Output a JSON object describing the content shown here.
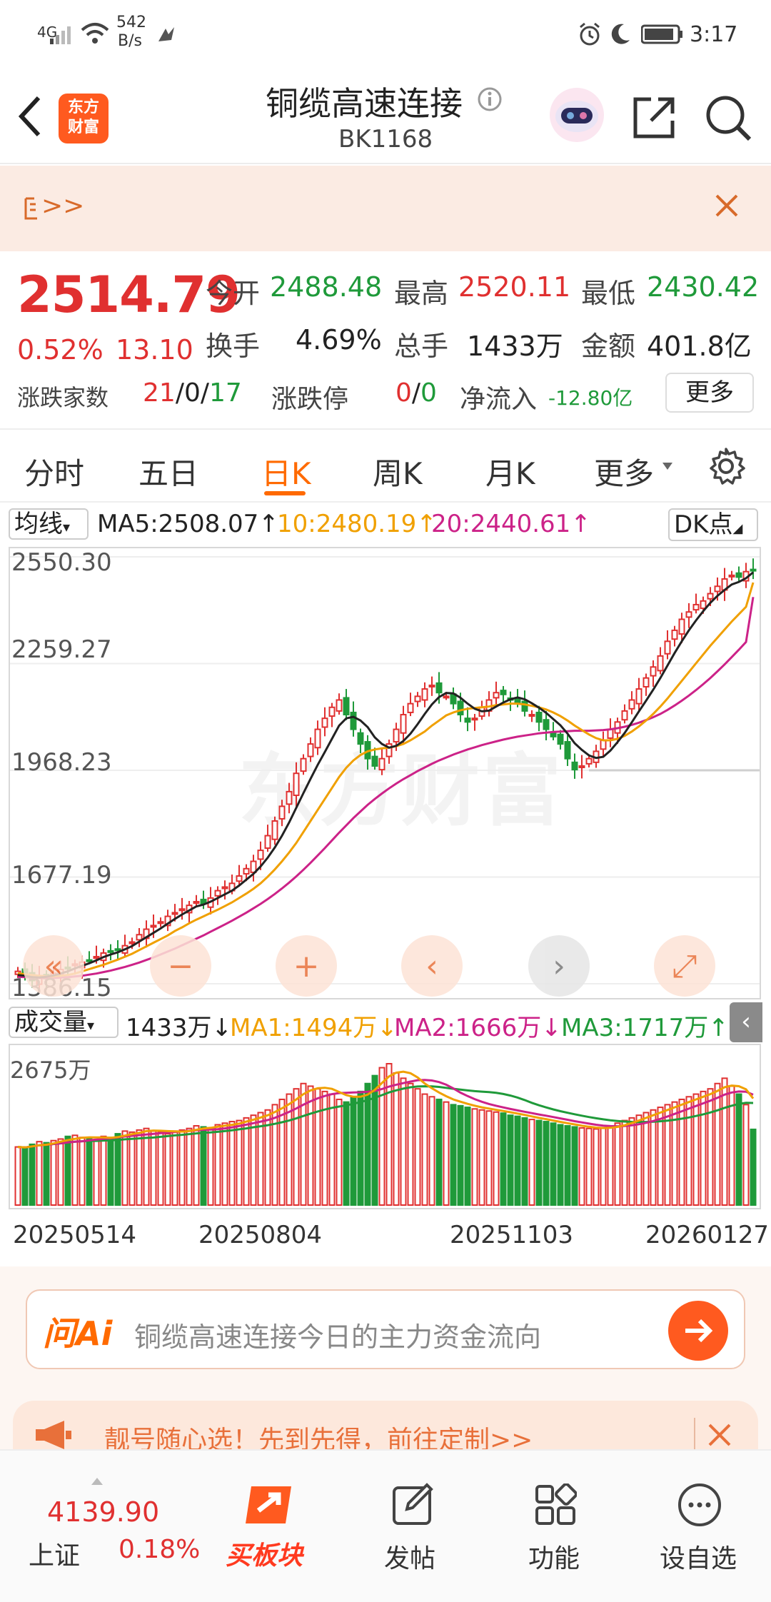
{
  "status_bar": {
    "network": "4G",
    "speed_value": "542",
    "speed_unit": "B/s",
    "time": "3:17"
  },
  "header": {
    "logo_line1": "东方",
    "logo_line2": "财富",
    "title": "铜缆高速连接",
    "code": "BK1168"
  },
  "banner": {
    "text": ">>",
    "close": "✕"
  },
  "quote": {
    "price": "2514.79",
    "change_pct": "0.52%",
    "change": "13.10",
    "open_label": "今开",
    "open": "2488.48",
    "high_label": "最高",
    "high": "2520.11",
    "low_label": "最低",
    "low": "2430.42",
    "turnover_label": "换手",
    "turnover": "4.69%",
    "volume_label": "总手",
    "volume": "1433万",
    "amount_label": "金额",
    "amount": "401.8亿",
    "updown_label": "涨跌家数",
    "up": "21",
    "flat": "0",
    "down": "17",
    "limit_label": "涨跌停",
    "limit_up": "0",
    "limit_down": "0",
    "netflow_label": "净流入",
    "netflow": "-12.80亿",
    "more_button": "更多"
  },
  "tabs": [
    "分时",
    "五日",
    "日K",
    "周K",
    "月K",
    "更多"
  ],
  "active_tab": "日K",
  "ma_row": {
    "selector": "均线",
    "ma5": "MA5:2508.07↑",
    "ma10": "10:2480.19↑",
    "ma20": "20:2440.61↑",
    "dk": "DK点"
  },
  "vol_row": {
    "selector": "成交量",
    "vol": "1433万↓",
    "ma1": "MA1:1494万↓",
    "ma2": "MA2:1666万↓",
    "ma3": "MA3:1717万↑"
  },
  "colors": {
    "up": "#e03030",
    "down": "#1f9a3a",
    "accent": "#ff6a00",
    "ma5": "#222222",
    "ma10": "#f0a000",
    "ma20": "#cc2288",
    "vol_ma3": "#1f9a3a"
  },
  "chart_data": {
    "type": "candlestick",
    "price_axis_labels": [
      "2550.30",
      "2259.27",
      "1968.23",
      "1677.19",
      "1386.15"
    ],
    "volume_axis_label": "2675万",
    "x_labels": [
      "20250514",
      "20250804",
      "20251103",
      "20260127"
    ],
    "ylim": [
      1386.15,
      2550.3
    ],
    "volume_max": 2675,
    "ref_line": 1968.23,
    "close": [
      1420,
      1410,
      1395,
      1405,
      1400,
      1415,
      1425,
      1430,
      1440,
      1445,
      1450,
      1460,
      1470,
      1475,
      1480,
      1490,
      1500,
      1520,
      1535,
      1545,
      1555,
      1570,
      1580,
      1590,
      1600,
      1610,
      1605,
      1620,
      1640,
      1650,
      1660,
      1680,
      1700,
      1720,
      1750,
      1790,
      1830,
      1870,
      1910,
      1960,
      2000,
      2040,
      2080,
      2110,
      2140,
      2160,
      2120,
      2080,
      2040,
      2000,
      1980,
      2000,
      2040,
      2080,
      2120,
      2150,
      2170,
      2190,
      2200,
      2180,
      2170,
      2150,
      2120,
      2100,
      2110,
      2140,
      2160,
      2180,
      2175,
      2160,
      2150,
      2130,
      2120,
      2100,
      2080,
      2060,
      2040,
      2000,
      1970,
      1980,
      2000,
      2020,
      2050,
      2080,
      2100,
      2130,
      2160,
      2190,
      2220,
      2250,
      2280,
      2320,
      2350,
      2380,
      2400,
      2420,
      2430,
      2450,
      2470,
      2490,
      2500,
      2495,
      2510,
      2514.79
    ],
    "ma5": [
      1410,
      1408,
      1404,
      1403,
      1405,
      1409,
      1414,
      1420,
      1428,
      1435,
      1442,
      1450,
      1459,
      1466,
      1472,
      1480,
      1489,
      1501,
      1513,
      1525,
      1537,
      1550,
      1563,
      1575,
      1586,
      1597,
      1602,
      1610,
      1620,
      1630,
      1640,
      1654,
      1670,
      1686,
      1706,
      1730,
      1758,
      1790,
      1826,
      1866,
      1906,
      1945,
      1983,
      2018,
      2054,
      2090,
      2110,
      2114,
      2104,
      2086,
      2058,
      2040,
      2030,
      2035,
      2048,
      2068,
      2094,
      2122,
      2148,
      2168,
      2179,
      2178,
      2166,
      2150,
      2136,
      2129,
      2131,
      2142,
      2153,
      2162,
      2167,
      2162,
      2151,
      2139,
      2125,
      2108,
      2091,
      2068,
      2042,
      2024,
      2009,
      2002,
      2005,
      2022,
      2045,
      2070,
      2099,
      2129,
      2158,
      2188,
      2220,
      2254,
      2288,
      2320,
      2350,
      2377,
      2402,
      2425,
      2444,
      2460,
      2475,
      2482,
      2492,
      2508.07
    ],
    "ma10": [
      1415,
      1412,
      1410,
      1408,
      1406,
      1406,
      1408,
      1410,
      1414,
      1420,
      1426,
      1432,
      1438,
      1445,
      1452,
      1460,
      1468,
      1478,
      1488,
      1498,
      1508,
      1518,
      1530,
      1540,
      1551,
      1561,
      1570,
      1579,
      1588,
      1598,
      1608,
      1620,
      1632,
      1645,
      1660,
      1678,
      1698,
      1720,
      1744,
      1770,
      1800,
      1830,
      1860,
      1890,
      1920,
      1950,
      1975,
      1995,
      2010,
      2020,
      2025,
      2028,
      2030,
      2034,
      2040,
      2050,
      2062,
      2074,
      2090,
      2104,
      2118,
      2126,
      2132,
      2136,
      2138,
      2140,
      2142,
      2146,
      2148,
      2150,
      2150,
      2148,
      2144,
      2140,
      2134,
      2126,
      2116,
      2104,
      2090,
      2078,
      2066,
      2056,
      2050,
      2050,
      2054,
      2062,
      2074,
      2088,
      2104,
      2122,
      2142,
      2164,
      2188,
      2212,
      2236,
      2260,
      2284,
      2308,
      2330,
      2352,
      2374,
      2394,
      2414,
      2480.19
    ],
    "ma20": [
      1405,
      1404,
      1403,
      1402,
      1402,
      1402,
      1403,
      1404,
      1406,
      1408,
      1411,
      1414,
      1418,
      1422,
      1427,
      1432,
      1438,
      1444,
      1451,
      1458,
      1466,
      1474,
      1482,
      1491,
      1500,
      1509,
      1518,
      1528,
      1538,
      1548,
      1558,
      1569,
      1580,
      1592,
      1604,
      1617,
      1631,
      1646,
      1662,
      1679,
      1697,
      1716,
      1736,
      1756,
      1777,
      1798,
      1818,
      1838,
      1856,
      1874,
      1890,
      1905,
      1919,
      1932,
      1944,
      1955,
      1966,
      1976,
      1986,
      1995,
      2003,
      2011,
      2018,
      2025,
      2031,
      2037,
      2042,
      2047,
      2052,
      2056,
      2060,
      2063,
      2066,
      2069,
      2071,
      2073,
      2074,
      2075,
      2076,
      2076,
      2076,
      2077,
      2078,
      2080,
      2083,
      2087,
      2092,
      2098,
      2105,
      2113,
      2122,
      2133,
      2145,
      2158,
      2172,
      2187,
      2203,
      2220,
      2238,
      2257,
      2277,
      2297,
      2318,
      2440.61
    ],
    "volume": [
      1100,
      1080,
      1150,
      1200,
      1180,
      1220,
      1250,
      1300,
      1320,
      1280,
      1260,
      1240,
      1300,
      1280,
      1350,
      1400,
      1380,
      1420,
      1450,
      1400,
      1380,
      1350,
      1400,
      1420,
      1450,
      1500,
      1480,
      1460,
      1520,
      1550,
      1580,
      1600,
      1650,
      1700,
      1750,
      1800,
      1900,
      2000,
      2100,
      2200,
      2300,
      2250,
      2200,
      2150,
      2100,
      2000,
      1950,
      2050,
      2150,
      2300,
      2450,
      2600,
      2675,
      2500,
      2400,
      2300,
      2200,
      2100,
      2050,
      2000,
      1950,
      1900,
      1880,
      1850,
      1820,
      1800,
      1780,
      1760,
      1740,
      1700,
      1680,
      1650,
      1620,
      1600,
      1580,
      1550,
      1520,
      1500,
      1480,
      1460,
      1450,
      1440,
      1460,
      1500,
      1550,
      1600,
      1650,
      1700,
      1750,
      1800,
      1850,
      1900,
      1950,
      2000,
      2050,
      2100,
      2150,
      2200,
      2300,
      2400,
      2250,
      2100,
      1900,
      1433
    ]
  },
  "controls": [
    "«",
    "−",
    "+",
    "‹",
    "›",
    "⤢"
  ],
  "watermark": "东方财富",
  "ask_ai": {
    "brand": "问Ai",
    "placeholder": "铜缆高速连接今日的主力资金流向"
  },
  "ad": {
    "text": "靓号随心选！先到先得，前往定制>>"
  },
  "bottom_nav": {
    "index_value": "4139.90",
    "index_name": "上证",
    "index_change": "0.18%",
    "buy_block": "买板块",
    "post": "发帖",
    "function": "功能",
    "watchlist": "设自选"
  }
}
